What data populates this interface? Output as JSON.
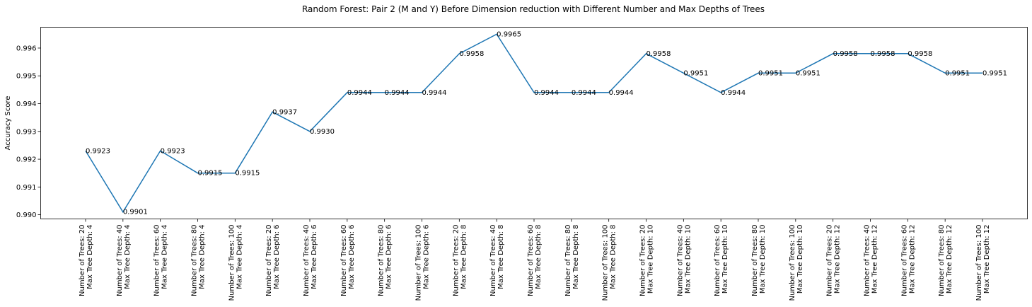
{
  "chart_data": {
    "type": "line",
    "title": "Random Forest: Pair 2 (M and Y) Before Dimension reduction with Different Number and Max Depths of Trees",
    "xlabel": "",
    "ylabel": "Accuracy Score",
    "ylim": [
      0.98985,
      0.99675
    ],
    "yticks": [
      0.99,
      0.991,
      0.992,
      0.993,
      0.994,
      0.995,
      0.996
    ],
    "grid": false,
    "line_color": "#1f77b4",
    "categories": [
      [
        "Number of Trees: 20",
        "Max Tree Depth: 4"
      ],
      [
        "Number of Trees: 40",
        "Max Tree Depth: 4"
      ],
      [
        "Number of Trees: 60",
        "Max Tree Depth: 4"
      ],
      [
        "Number of Trees: 80",
        "Max Tree Depth: 4"
      ],
      [
        "Number of Trees: 100",
        "Max Tree Depth: 4"
      ],
      [
        "Number of Trees: 20",
        "Max Tree Depth: 6"
      ],
      [
        "Number of Trees: 40",
        "Max Tree Depth: 6"
      ],
      [
        "Number of Trees: 60",
        "Max Tree Depth: 6"
      ],
      [
        "Number of Trees: 80",
        "Max Tree Depth: 6"
      ],
      [
        "Number of Trees: 100",
        "Max Tree Depth: 6"
      ],
      [
        "Number of Trees: 20",
        "Max Tree Depth: 8"
      ],
      [
        "Number of Trees: 40",
        "Max Tree Depth: 8"
      ],
      [
        "Number of Trees: 60",
        "Max Tree Depth: 8"
      ],
      [
        "Number of Trees: 80",
        "Max Tree Depth: 8"
      ],
      [
        "Number of Trees: 100",
        "Max Tree Depth: 8"
      ],
      [
        "Number of Trees: 20",
        "Max Tree Depth: 10"
      ],
      [
        "Number of Trees: 40",
        "Max Tree Depth: 10"
      ],
      [
        "Number of Trees: 60",
        "Max Tree Depth: 10"
      ],
      [
        "Number of Trees: 80",
        "Max Tree Depth: 10"
      ],
      [
        "Number of Trees: 100",
        "Max Tree Depth: 10"
      ],
      [
        "Number of Trees: 20",
        "Max Tree Depth: 12"
      ],
      [
        "Number of Trees: 40",
        "Max Tree Depth: 12"
      ],
      [
        "Number of Trees: 60",
        "Max Tree Depth: 12"
      ],
      [
        "Number of Trees: 80",
        "Max Tree Depth: 12"
      ],
      [
        "Number of Trees: 100",
        "Max Tree Depth: 12"
      ]
    ],
    "values": [
      0.9923,
      0.9901,
      0.9923,
      0.9915,
      0.9915,
      0.9937,
      0.993,
      0.9944,
      0.9944,
      0.9944,
      0.9958,
      0.9965,
      0.9944,
      0.9944,
      0.9944,
      0.9958,
      0.9951,
      0.9944,
      0.9951,
      0.9951,
      0.9958,
      0.9958,
      0.9958,
      0.9951,
      0.9951
    ],
    "value_labels": [
      "0.9923",
      "0.9901",
      "0.9923",
      "0.9915",
      "0.9915",
      "0.9937",
      "0.9930",
      "0.9944",
      "0.9944",
      "0.9944",
      "0.9958",
      "0.9965",
      "0.9944",
      "0.9944",
      "0.9944",
      "0.9958",
      "0.9951",
      "0.9944",
      "0.9951",
      "0.9951",
      "0.9958",
      "0.9958",
      "0.9958",
      "0.9951",
      "0.9951"
    ]
  }
}
